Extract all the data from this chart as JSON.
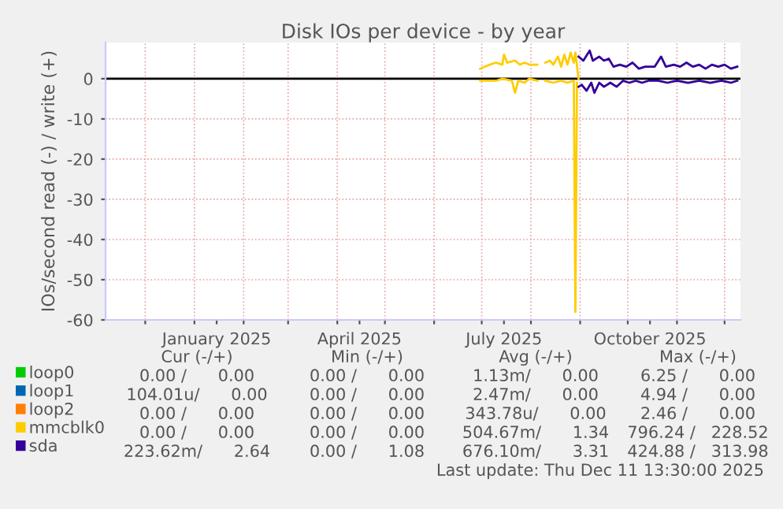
{
  "chart_data": {
    "type": "line",
    "title": "Disk IOs per device - by year",
    "ylabel": "IOs/second read (-) / write (+)",
    "xlim": [
      "2024-11-06",
      "2025-12-11"
    ],
    "xticks": [
      {
        "value": "2024-12-01",
        "label": null
      },
      {
        "value": "2025-01-01",
        "label": null
      },
      {
        "value": "2025-01-15",
        "label": "January 2025"
      },
      {
        "value": "2025-02-01",
        "label": null
      },
      {
        "value": "2025-03-01",
        "label": null
      },
      {
        "value": "2025-04-01",
        "label": null
      },
      {
        "value": "2025-04-15",
        "label": "April 2025"
      },
      {
        "value": "2025-05-01",
        "label": null
      },
      {
        "value": "2025-06-01",
        "label": null
      },
      {
        "value": "2025-07-01",
        "label": null
      },
      {
        "value": "2025-07-15",
        "label": "July 2025"
      },
      {
        "value": "2025-08-01",
        "label": null
      },
      {
        "value": "2025-09-01",
        "label": null
      },
      {
        "value": "2025-10-01",
        "label": null
      },
      {
        "value": "2025-10-15",
        "label": "October 2025"
      },
      {
        "value": "2025-11-01",
        "label": null
      },
      {
        "value": "2025-12-01",
        "label": null
      }
    ],
    "ylim": [
      -60,
      9
    ],
    "yticks": [
      0,
      -10,
      -20,
      -30,
      -40,
      -50,
      -60
    ],
    "grid": true,
    "legend": "bottom left",
    "marker": "none",
    "line_style": "solid",
    "ref_lines": [
      {
        "axis": "y",
        "value": 0,
        "color": "#000000"
      }
    ],
    "series": [
      {
        "name": "loop0",
        "color": "#00cc00"
      },
      {
        "name": "loop1",
        "color": "#0066b3"
      },
      {
        "name": "loop2",
        "color": "#ff8000"
      },
      {
        "name": "mmcblk0",
        "color": "#ffcc00",
        "x": [
          "2025-06-30",
          "2025-07-06",
          "2025-07-10",
          "2025-07-14",
          "2025-07-15",
          "2025-07-17",
          "2025-07-22",
          "2025-07-25",
          "2025-07-28",
          "2025-07-31",
          "2025-08-05",
          "2025-08-07",
          "2025-08-10",
          "2025-08-13",
          "2025-08-15",
          "2025-08-18",
          "2025-08-20",
          "2025-08-22",
          "2025-08-24",
          "2025-08-26",
          "2025-08-28",
          "2025-08-29",
          "2025-08-31"
        ],
        "values": [
          2.5,
          3.5,
          4,
          3.5,
          6,
          4,
          4.5,
          3.5,
          4,
          3.5,
          3.5,
          null,
          4,
          4.5,
          3.5,
          5.5,
          3,
          6,
          3.5,
          6.5,
          4,
          6.5,
          0
        ]
      },
      {
        "name": "sda",
        "color": "#330099",
        "x": [
          "2025-08-31",
          "2025-09-03",
          "2025-09-07",
          "2025-09-09",
          "2025-09-13",
          "2025-09-16",
          "2025-09-19",
          "2025-09-22",
          "2025-09-26",
          "2025-09-30",
          "2025-10-04",
          "2025-10-08",
          "2025-10-12",
          "2025-10-18",
          "2025-10-22",
          "2025-10-25",
          "2025-10-30",
          "2025-11-03",
          "2025-11-07",
          "2025-11-11",
          "2025-11-15",
          "2025-11-19",
          "2025-11-23",
          "2025-11-27",
          "2025-12-01",
          "2025-12-05",
          "2025-12-09"
        ],
        "values": [
          5.5,
          4.5,
          7,
          4.5,
          5.5,
          4.5,
          5,
          3,
          3.5,
          3,
          4,
          2.5,
          3,
          3,
          5.5,
          3,
          3.5,
          3,
          4,
          3,
          3.5,
          2.5,
          3.5,
          3,
          3.5,
          2.5,
          3
        ]
      },
      {
        "color": "#ffcc00",
        "x": [
          "2025-06-30",
          "2025-07-06",
          "2025-07-10",
          "2025-07-14",
          "2025-07-20",
          "2025-07-22",
          "2025-07-24",
          "2025-07-28",
          "2025-07-31",
          "2025-08-05",
          "2025-08-07",
          "2025-08-10",
          "2025-08-15",
          "2025-08-20",
          "2025-08-24",
          "2025-08-28",
          "2025-08-29",
          "2025-08-30"
        ],
        "values": [
          -0.5,
          -0.5,
          -0.5,
          0,
          -0.5,
          -3.5,
          -0.5,
          -1,
          0,
          -0.5,
          null,
          -0.5,
          -1,
          -0.5,
          -1,
          -0.5,
          -58,
          -1
        ]
      },
      {
        "color": "#330099",
        "x": [
          "2025-08-31",
          "2025-09-02",
          "2025-09-05",
          "2025-09-08",
          "2025-09-10",
          "2025-09-13",
          "2025-09-16",
          "2025-09-20",
          "2025-09-24",
          "2025-09-28",
          "2025-10-02",
          "2025-10-06",
          "2025-10-10",
          "2025-10-14",
          "2025-10-20",
          "2025-10-26",
          "2025-11-01",
          "2025-11-08",
          "2025-11-15",
          "2025-11-22",
          "2025-11-29",
          "2025-12-05",
          "2025-12-09"
        ],
        "values": [
          -2,
          -1.5,
          -3,
          -1,
          -3.5,
          -1,
          -2,
          -1,
          -2,
          -0.5,
          -1,
          -0.5,
          -1,
          -0.5,
          -0.5,
          -1,
          -0.5,
          -1,
          -0.5,
          -1,
          -0.5,
          -1,
          -0.5
        ]
      }
    ],
    "annotations": [
      "Cur (-/+)",
      "Min (-/+)",
      "Avg (-/+)",
      "Max (-/+)",
      "0.00 /      0.00",
      "0.00 /      0.00",
      "1.13m/      0.00",
      "6.25 /      0.00",
      "104.01u/      0.00",
      "0.00 /      0.00",
      "2.47m/      0.00",
      "4.94 /      0.00",
      "0.00 /      0.00",
      "0.00 /      0.00",
      "343.78u/      0.00",
      "2.46 /      0.00",
      "0.00 /      0.00",
      "0.00 /      0.00",
      "504.67m/      1.34",
      "796.24 /   228.52",
      "223.62m/      2.64",
      "0.00 /      1.08",
      "676.10m/      3.31",
      "424.88 /   313.98",
      "Last update: Thu Dec 11 13:30:00 2025"
    ]
  }
}
